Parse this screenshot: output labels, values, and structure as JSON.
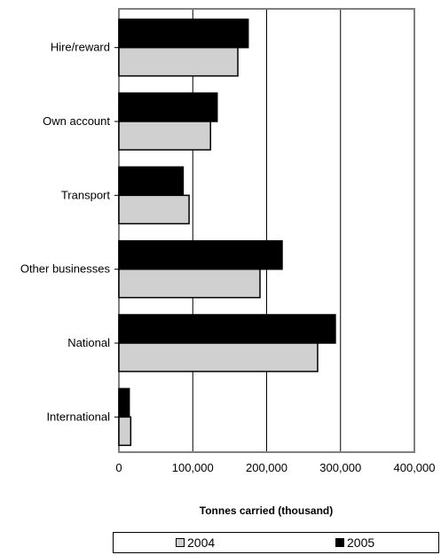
{
  "chart_data": {
    "type": "bar",
    "orientation": "horizontal",
    "categories": [
      "Hire/reward",
      "Own account",
      "Transport",
      "Other businesses",
      "National",
      "International"
    ],
    "series": [
      {
        "name": "2005",
        "color": "#000000",
        "values": [
          175000,
          133000,
          87000,
          221000,
          293000,
          14000
        ]
      },
      {
        "name": "2004",
        "color": "#d0d0d0",
        "values": [
          161000,
          124000,
          95000,
          191000,
          269000,
          16000
        ]
      }
    ],
    "xlabel": "Tonnes carried (thousand)",
    "xlim": [
      0,
      400000
    ],
    "xticks": [
      "0",
      "100,000",
      "200,000",
      "300,000",
      "400,000"
    ],
    "xtick_values": [
      0,
      100000,
      200000,
      300000,
      400000
    ],
    "grid": "vertical",
    "legend_position": "bottom"
  },
  "legend": {
    "items": [
      {
        "label": "2004",
        "color": "#d0d0d0"
      },
      {
        "label": "2005",
        "color": "#000000"
      }
    ]
  }
}
